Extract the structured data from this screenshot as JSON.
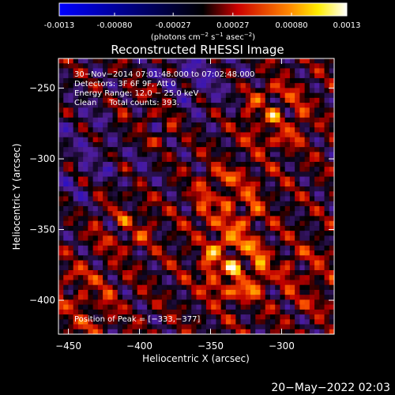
{
  "colorbar": {
    "ticks": [
      "-0.0013",
      "-0.00080",
      "-0.00027",
      "0.00027",
      "0.00080",
      "0.0013"
    ],
    "tick_values": [
      -0.0013,
      -0.0008,
      -0.00027,
      0.00027,
      0.0008,
      0.0013
    ],
    "range": [
      -0.0013,
      0.0013
    ],
    "units_prefix": "(photons cm",
    "units_exp1": "−2",
    "units_mid": " s",
    "units_exp2": "−1",
    "units_mid2": " asec",
    "units_exp3": "−2",
    "units_suffix": ")",
    "colors": [
      "#0000ff",
      "#000000",
      "#ff0000",
      "#ffff00",
      "#ffffff"
    ]
  },
  "chart_data": {
    "type": "heatmap",
    "title": "Reconstructed RHESSI Image",
    "xlabel": "Heliocentric X (arcsec)",
    "ylabel": "Heliocentric Y (arcsec)",
    "xlim": [
      -457,
      -263
    ],
    "ylim": [
      -424,
      -229
    ],
    "xticks": [
      -450,
      -400,
      -350,
      -300
    ],
    "yticks": [
      -250,
      -300,
      -350,
      -400
    ],
    "xtick_labels": [
      "−450",
      "−400",
      "−350",
      "−300"
    ],
    "ytick_labels": [
      "−250",
      "−300",
      "−350",
      "−400"
    ],
    "grid": false,
    "peak": {
      "x": -333,
      "y": -377,
      "label": "Position of Peak = [−333,−377]"
    },
    "hotspots": [
      {
        "x": -333,
        "y": -377,
        "value": 0.0013
      },
      {
        "x": -338,
        "y": -330,
        "value": 0.0009
      },
      {
        "x": -305,
        "y": -270,
        "value": 0.0008
      },
      {
        "x": -412,
        "y": -342,
        "value": 0.0007
      },
      {
        "x": -395,
        "y": -270,
        "value": 0.0006
      },
      {
        "x": -440,
        "y": -400,
        "value": 0.0006
      },
      {
        "x": -278,
        "y": -385,
        "value": 0.0005
      },
      {
        "x": -430,
        "y": -300,
        "value": 0.0005
      }
    ],
    "info_lines": [
      "30−Nov−2014 07:01:48.000 to 07:02:48.000",
      "Detectors: 3F 6F 9F, Att 0",
      "Energy Range: 12.0 − 25.0 keV",
      "Clean     Total counts: 393."
    ]
  },
  "footer": {
    "timestamp": "20−May−2022 02:03"
  }
}
